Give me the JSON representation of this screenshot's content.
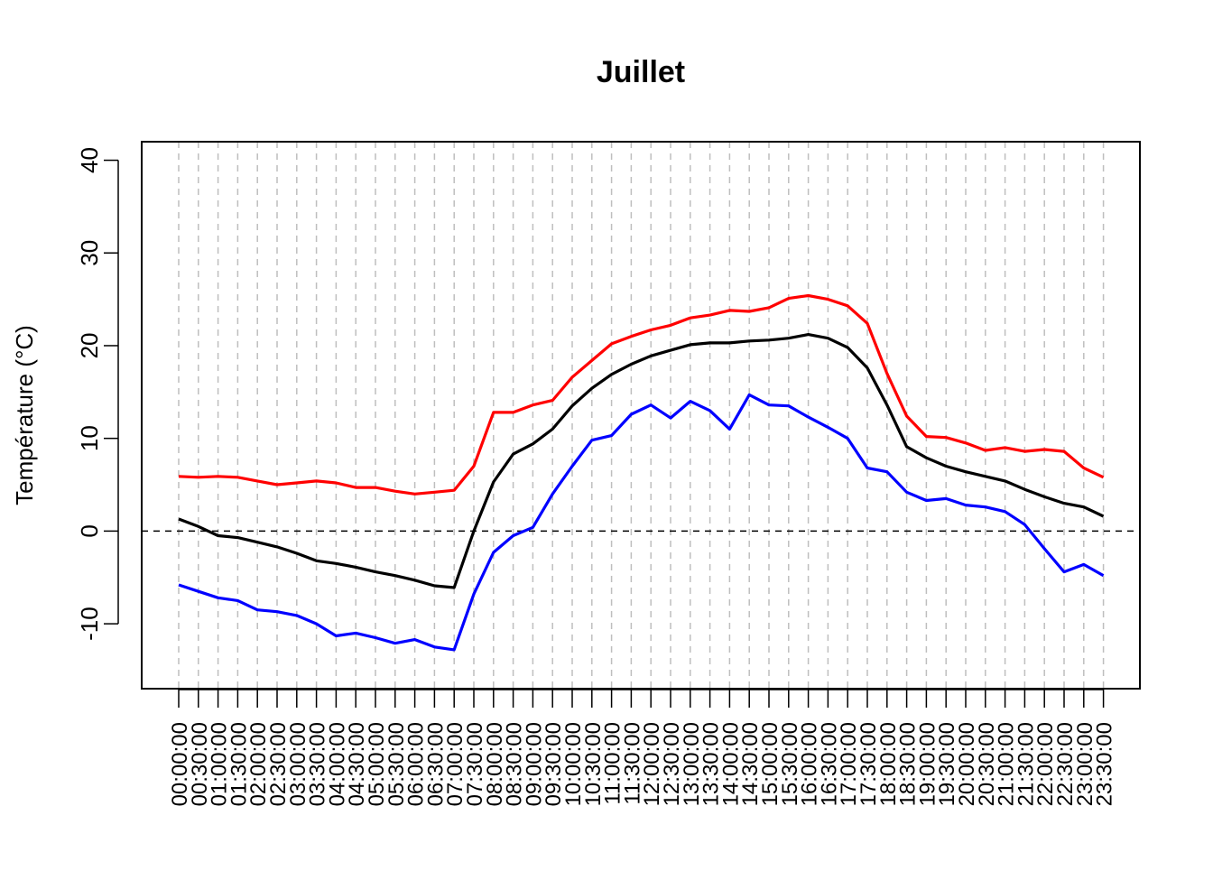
{
  "chart_data": {
    "type": "line",
    "title": "Juillet",
    "ylabel": "Température (°C)",
    "xlabel": "",
    "ylim": [
      -17,
      42
    ],
    "yticks": [
      -10,
      0,
      10,
      20,
      30,
      40
    ],
    "ytick_labels": [
      "-10",
      "0",
      "10",
      "20",
      "30",
      "40"
    ],
    "grid": "vertical dashed",
    "reference_line": 0,
    "categories": [
      "00:00:00",
      "00:30:00",
      "01:00:00",
      "01:30:00",
      "02:00:00",
      "02:30:00",
      "03:00:00",
      "03:30:00",
      "04:00:00",
      "04:30:00",
      "05:00:00",
      "05:30:00",
      "06:00:00",
      "06:30:00",
      "07:00:00",
      "07:30:00",
      "08:00:00",
      "08:30:00",
      "09:00:00",
      "09:30:00",
      "10:00:00",
      "10:30:00",
      "11:00:00",
      "11:30:00",
      "12:00:00",
      "12:30:00",
      "13:00:00",
      "13:30:00",
      "14:00:00",
      "14:30:00",
      "15:00:00",
      "15:30:00",
      "16:00:00",
      "16:30:00",
      "17:00:00",
      "17:30:00",
      "18:00:00",
      "18:30:00",
      "19:00:00",
      "19:30:00",
      "20:00:00",
      "20:30:00",
      "21:00:00",
      "21:30:00",
      "22:00:00",
      "22:30:00",
      "23:00:00",
      "23:30:00"
    ],
    "series": [
      {
        "color": "#ff0000",
        "values": [
          5.9,
          5.8,
          5.9,
          5.8,
          5.4,
          5.0,
          5.2,
          5.4,
          5.2,
          4.7,
          4.7,
          4.3,
          4.0,
          4.2,
          4.4,
          7.0,
          12.8,
          12.8,
          13.6,
          14.1,
          16.6,
          18.4,
          20.2,
          21.0,
          21.7,
          22.2,
          23.0,
          23.3,
          23.8,
          23.7,
          24.1,
          25.1,
          25.4,
          25.0,
          24.3,
          22.4,
          17.0,
          12.4,
          10.2,
          10.1,
          9.5,
          8.7,
          9.0,
          8.6,
          8.8,
          8.6,
          6.8,
          5.8
        ]
      },
      {
        "color": "#000000",
        "values": [
          1.3,
          0.5,
          -0.5,
          -0.7,
          -1.2,
          -1.7,
          -2.4,
          -3.2,
          -3.5,
          -3.9,
          -4.4,
          -4.8,
          -5.3,
          -5.9,
          -6.1,
          0.0,
          5.3,
          8.3,
          9.4,
          11.0,
          13.5,
          15.4,
          16.9,
          18.0,
          18.9,
          19.5,
          20.1,
          20.3,
          20.3,
          20.5,
          20.6,
          20.8,
          21.2,
          20.8,
          19.8,
          17.6,
          13.6,
          9.1,
          7.9,
          7.0,
          6.4,
          5.9,
          5.4,
          4.5,
          3.7,
          3.0,
          2.6,
          1.6
        ]
      },
      {
        "color": "#0000ff",
        "values": [
          -5.8,
          -6.5,
          -7.2,
          -7.5,
          -8.5,
          -8.7,
          -9.1,
          -10.0,
          -11.3,
          -11.0,
          -11.5,
          -12.1,
          -11.7,
          -12.5,
          -12.8,
          -6.8,
          -2.3,
          -0.5,
          0.4,
          4.0,
          7.0,
          9.8,
          10.3,
          12.6,
          13.6,
          12.2,
          14.0,
          13.0,
          11.0,
          14.7,
          13.6,
          13.5,
          12.3,
          11.2,
          10.0,
          6.8,
          6.4,
          4.2,
          3.3,
          3.5,
          2.8,
          2.6,
          2.1,
          0.7,
          -1.9,
          -4.4,
          -3.6,
          -4.8
        ]
      }
    ]
  }
}
